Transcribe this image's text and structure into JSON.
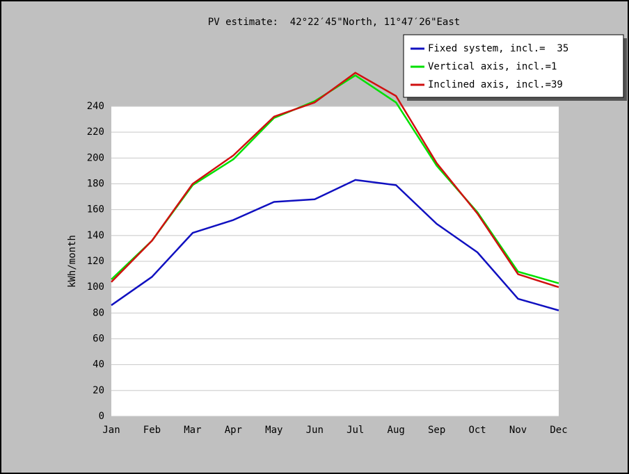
{
  "chart_data": {
    "type": "line",
    "title": "PV estimate:  42°22′45\"North, 11°47′26\"East",
    "y_label": "kWh/month",
    "categories": [
      "Jan",
      "Feb",
      "Mar",
      "Apr",
      "May",
      "Jun",
      "Jul",
      "Aug",
      "Sep",
      "Oct",
      "Nov",
      "Dec"
    ],
    "series": [
      {
        "name": "Fixed system, incl.=  35",
        "color": "#1010c0",
        "values": [
          86,
          108,
          142,
          152,
          166,
          168,
          183,
          179,
          149,
          127,
          91,
          82
        ]
      },
      {
        "name": "Vertical axis, incl.=1",
        "color": "#00e000",
        "values": [
          106,
          136,
          179,
          199,
          231,
          244,
          264,
          243,
          194,
          158,
          112,
          103
        ]
      },
      {
        "name": "Inclined axis, incl.=39",
        "color": "#d01010",
        "values": [
          104,
          136,
          180,
          202,
          232,
          243,
          266,
          248,
          196,
          157,
          110,
          100
        ]
      }
    ],
    "ylim": [
      0,
      240
    ],
    "yticks": [
      0,
      20,
      40,
      60,
      80,
      100,
      120,
      140,
      160,
      180,
      200,
      220,
      240
    ],
    "grid": true,
    "legend": "upper right"
  }
}
